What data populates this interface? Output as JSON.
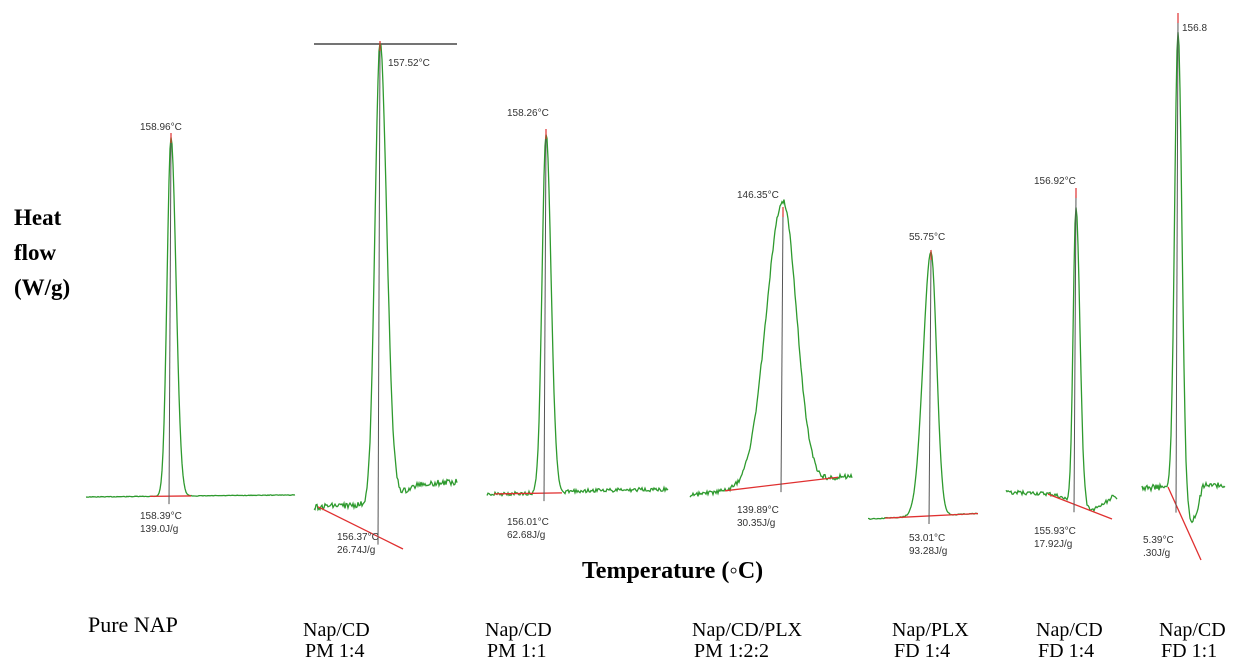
{
  "y_axis_label_lines": [
    "Heat",
    "flow",
    "(W/g)"
  ],
  "x_axis_label": "Temperature (◦C)",
  "colors": {
    "trace": "#2e9a2e",
    "baseline": "#e03030",
    "marker": "#555555"
  },
  "chart_data": {
    "type": "line",
    "xlabel": "Temperature (◦C)",
    "ylabel": "Heat flow (W/g)",
    "panels": [
      {
        "name": "Pure NAP",
        "sub": "",
        "peak_label": "158.96°C",
        "onset_label": "158.39°C",
        "enthalpy_label": "139.0J/g",
        "peak_temp_c": 158.96,
        "onset_temp_c": 158.39,
        "enthalpy_j_per_g": 139.0
      },
      {
        "name": "Nap/CD",
        "sub": "PM 1:4",
        "peak_label": "157.52°C",
        "onset_label": "156.37°C",
        "enthalpy_label": "26.74J/g",
        "peak_temp_c": 157.52,
        "onset_temp_c": 156.37,
        "enthalpy_j_per_g": 26.74
      },
      {
        "name": "Nap/CD",
        "sub": "PM 1:1",
        "peak_label": "158.26°C",
        "onset_label": "156.01°C",
        "enthalpy_label": "62.68J/g",
        "peak_temp_c": 158.26,
        "onset_temp_c": 156.01,
        "enthalpy_j_per_g": 62.68
      },
      {
        "name": "Nap/CD/PLX",
        "sub": "PM 1:2:2",
        "peak_label": "146.35°C",
        "onset_label": "139.89°C",
        "enthalpy_label": "30.35J/g",
        "peak_temp_c": 146.35,
        "onset_temp_c": 139.89,
        "enthalpy_j_per_g": 30.35
      },
      {
        "name": "Nap/PLX",
        "sub": "FD 1:4",
        "peak_label": "55.75°C",
        "onset_label": "53.01°C",
        "enthalpy_label": "93.28J/g",
        "peak_temp_c": 55.75,
        "onset_temp_c": 53.01,
        "enthalpy_j_per_g": 93.28
      },
      {
        "name": "Nap/CD",
        "sub": "FD 1:4",
        "peak_label": "156.92°C",
        "onset_label": "155.93°C",
        "enthalpy_label": "17.92J/g",
        "peak_temp_c": 156.92,
        "onset_temp_c": 155.93,
        "enthalpy_j_per_g": 17.92
      },
      {
        "name": "Nap/CD",
        "sub": "FD 1:1",
        "peak_label": "156.8",
        "onset_label": "5.39°C",
        "enthalpy_label": ".30J/g"
      }
    ]
  }
}
